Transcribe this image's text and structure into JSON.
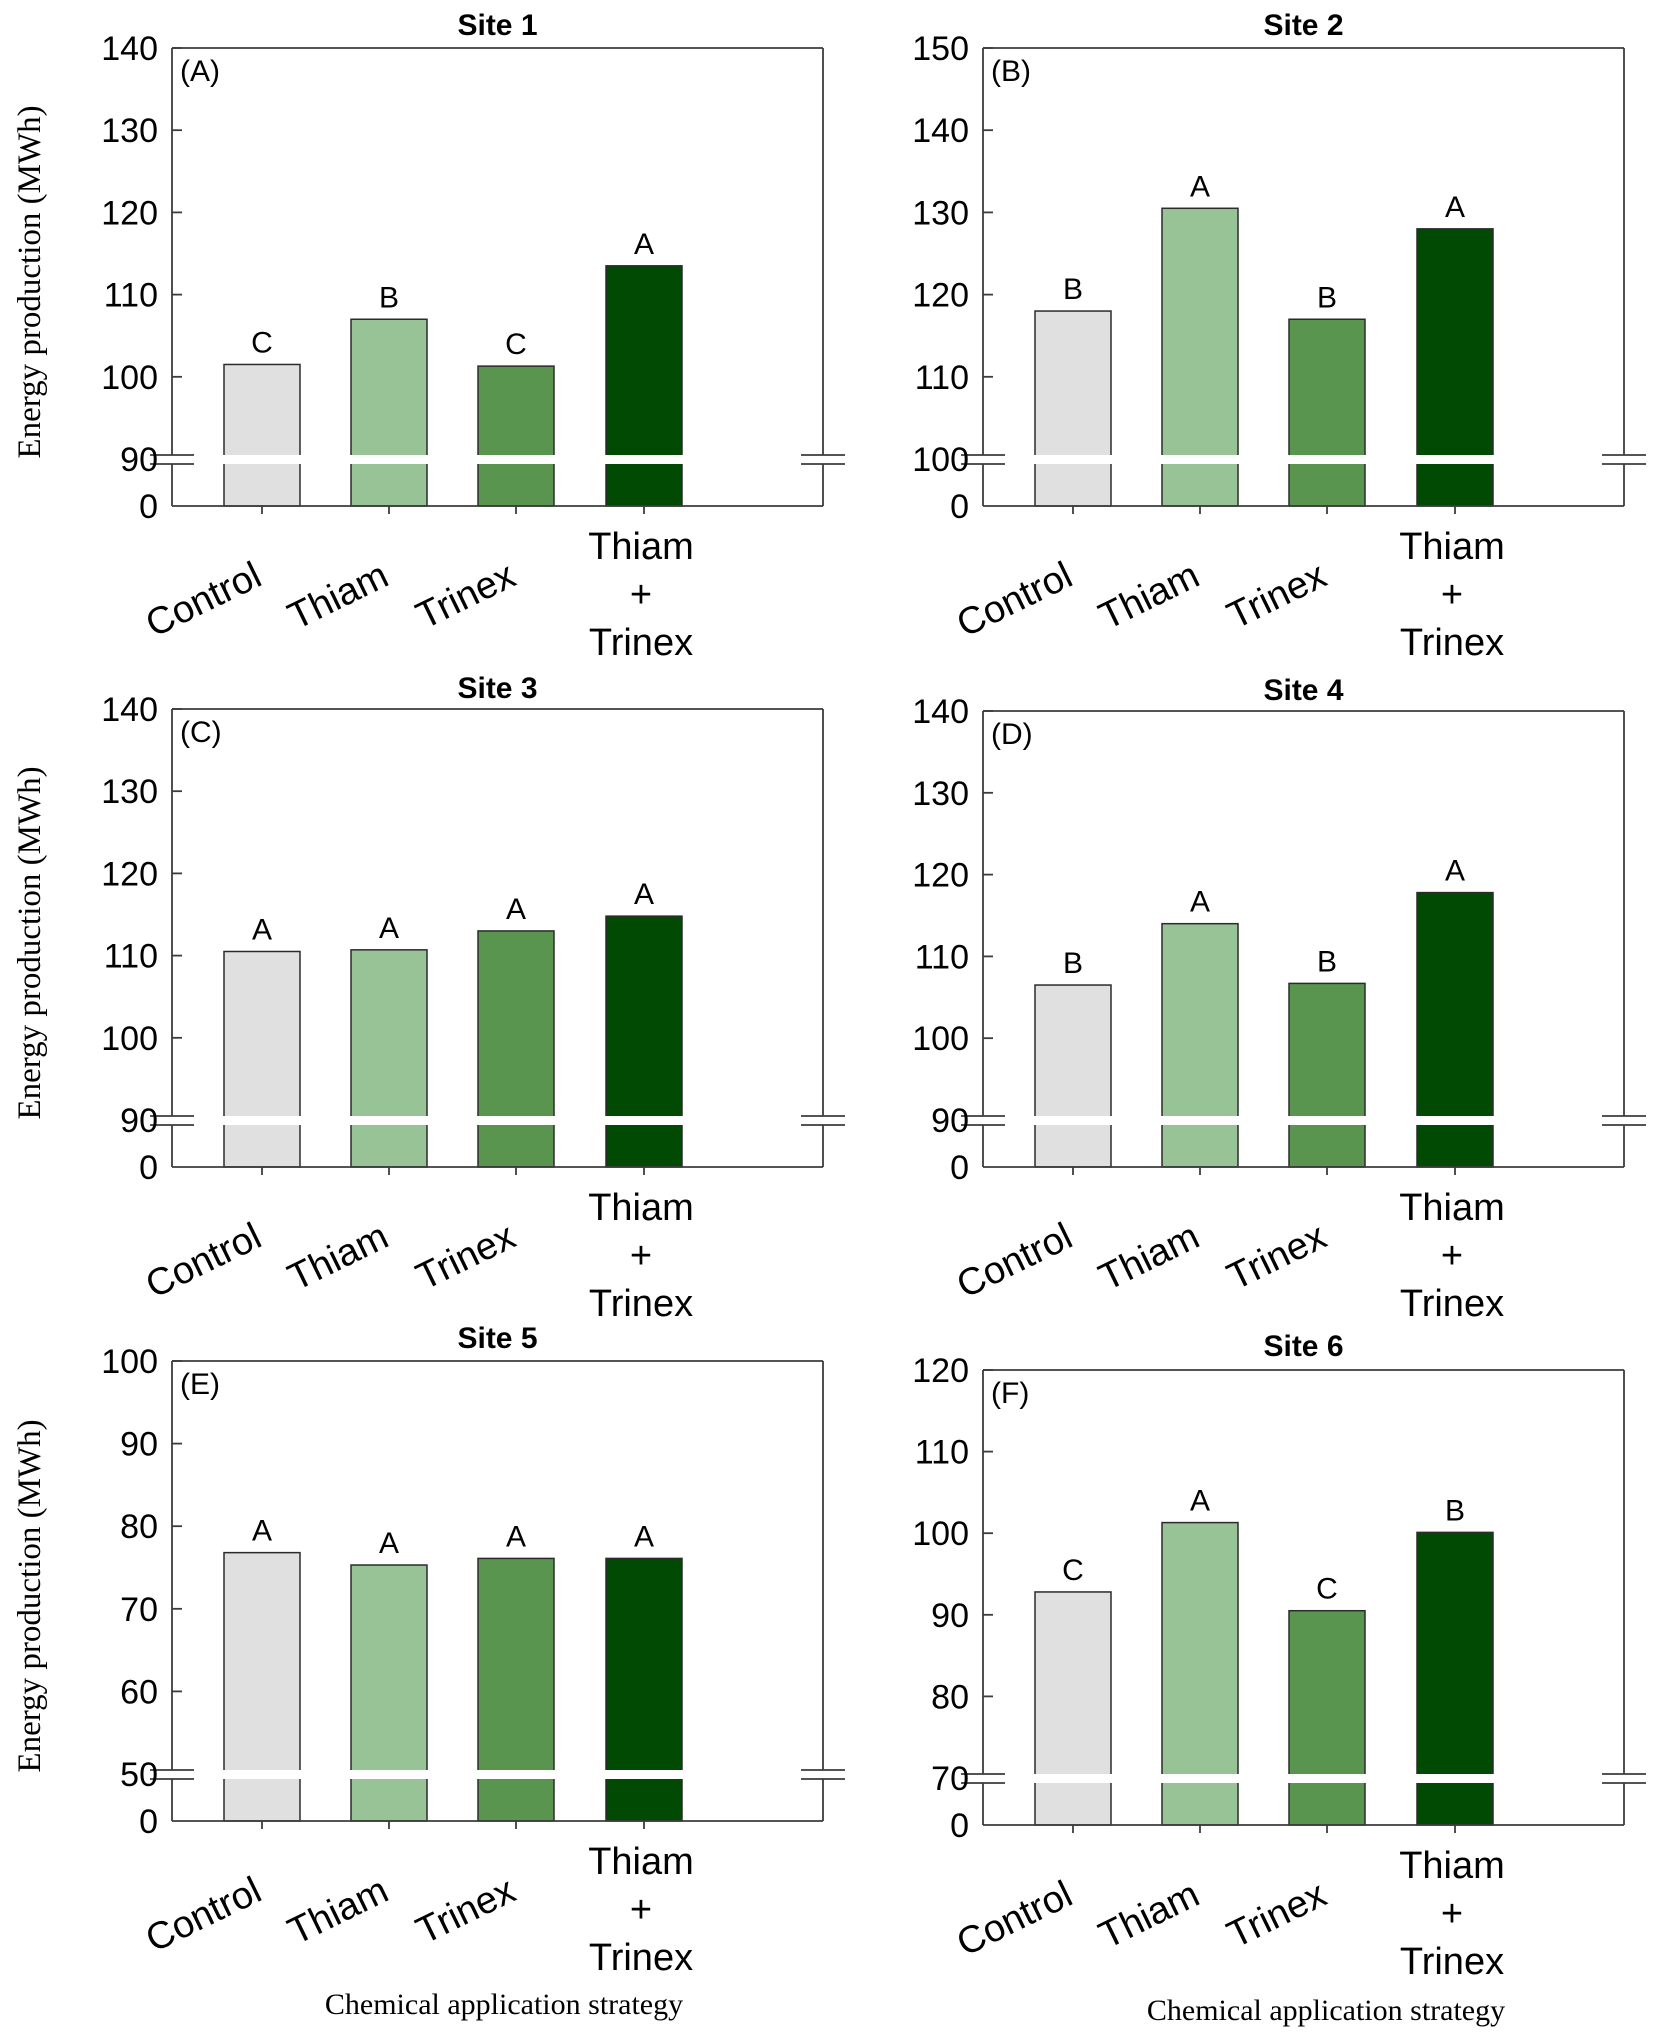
{
  "figure": {
    "ylabel": "Energy production (MWh)",
    "xlabel": "Chemical application strategy",
    "categories": [
      [
        "Control"
      ],
      [
        "Thiam"
      ],
      [
        "Trinex"
      ],
      [
        "Thiam",
        "+",
        "Trinex"
      ]
    ],
    "bar_colors": [
      "#e0e0e0",
      "#98c396",
      "#5a954f",
      "#004a03"
    ]
  },
  "chart_data": [
    {
      "type": "bar",
      "title": "Site 1",
      "panel_label": "(A)",
      "ylim": [
        90,
        140
      ],
      "yticks": [
        140,
        130,
        120,
        110,
        100,
        90
      ],
      "y_break_label": "0",
      "values": [
        101.5,
        107,
        101.3,
        113.5
      ],
      "letters": [
        "C",
        "B",
        "C",
        "A"
      ]
    },
    {
      "type": "bar",
      "title": "Site 2",
      "panel_label": "(B)",
      "ylim": [
        100,
        150
      ],
      "yticks": [
        150,
        140,
        130,
        120,
        110,
        100
      ],
      "y_break_label": "0",
      "values": [
        118,
        130.5,
        117,
        128
      ],
      "letters": [
        "B",
        "A",
        "B",
        "A"
      ]
    },
    {
      "type": "bar",
      "title": "Site 3",
      "panel_label": "(C)",
      "ylim": [
        90,
        140
      ],
      "yticks": [
        140,
        130,
        120,
        110,
        100,
        90
      ],
      "y_break_label": "0",
      "values": [
        110.5,
        110.7,
        113,
        114.8
      ],
      "letters": [
        "A",
        "A",
        "A",
        "A"
      ]
    },
    {
      "type": "bar",
      "title": "Site 4",
      "panel_label": "(D)",
      "ylim": [
        90,
        140
      ],
      "yticks": [
        140,
        130,
        120,
        110,
        100,
        90
      ],
      "y_break_label": "0",
      "values": [
        106.5,
        114,
        106.7,
        117.8
      ],
      "letters": [
        "B",
        "A",
        "B",
        "A"
      ]
    },
    {
      "type": "bar",
      "title": "Site 5",
      "panel_label": "(E)",
      "ylim": [
        50,
        100
      ],
      "yticks": [
        100,
        90,
        80,
        70,
        60,
        50
      ],
      "y_break_label": "0",
      "values": [
        76.8,
        75.3,
        76.1,
        76.1
      ],
      "letters": [
        "A",
        "A",
        "A",
        "A"
      ]
    },
    {
      "type": "bar",
      "title": "Site 6",
      "panel_label": "(F)",
      "ylim": [
        70,
        120
      ],
      "yticks": [
        120,
        110,
        100,
        90,
        80,
        70
      ],
      "y_break_label": "0",
      "values": [
        92.8,
        101.3,
        90.5,
        100.1
      ],
      "letters": [
        "C",
        "A",
        "C",
        "B"
      ]
    }
  ]
}
